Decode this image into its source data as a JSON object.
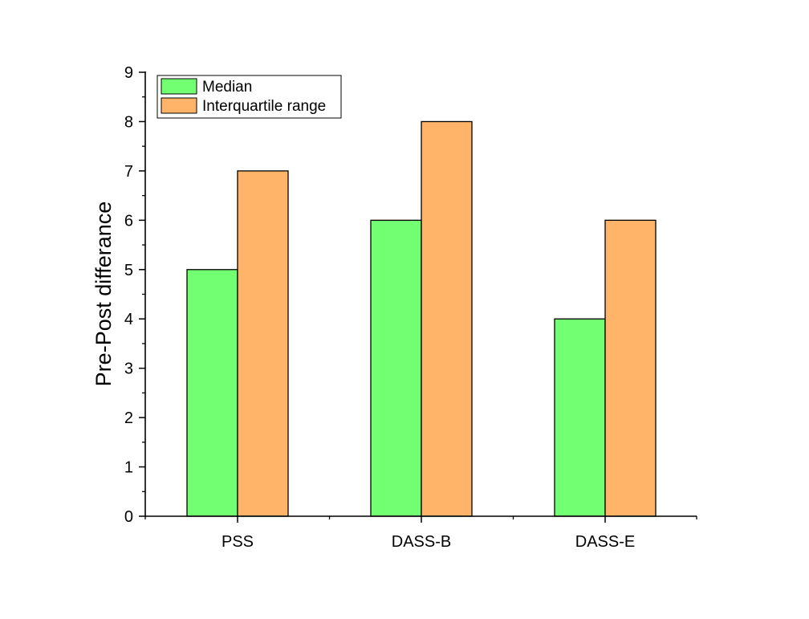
{
  "chart_data": {
    "type": "bar",
    "categories": [
      "PSS",
      "DASS-B",
      "DASS-E"
    ],
    "series": [
      {
        "name": "Median",
        "values": [
          5,
          6,
          4
        ],
        "color": "#72FF72"
      },
      {
        "name": "Interquartile range",
        "values": [
          7,
          8,
          6
        ],
        "color": "#FFB469"
      }
    ],
    "xlabel": "",
    "ylabel": "Pre-Post differance",
    "ylim": [
      0,
      9
    ],
    "yticks": [
      0,
      1,
      2,
      3,
      4,
      5,
      6,
      7,
      8,
      9
    ],
    "grid": false,
    "legend_position": "top-left"
  }
}
